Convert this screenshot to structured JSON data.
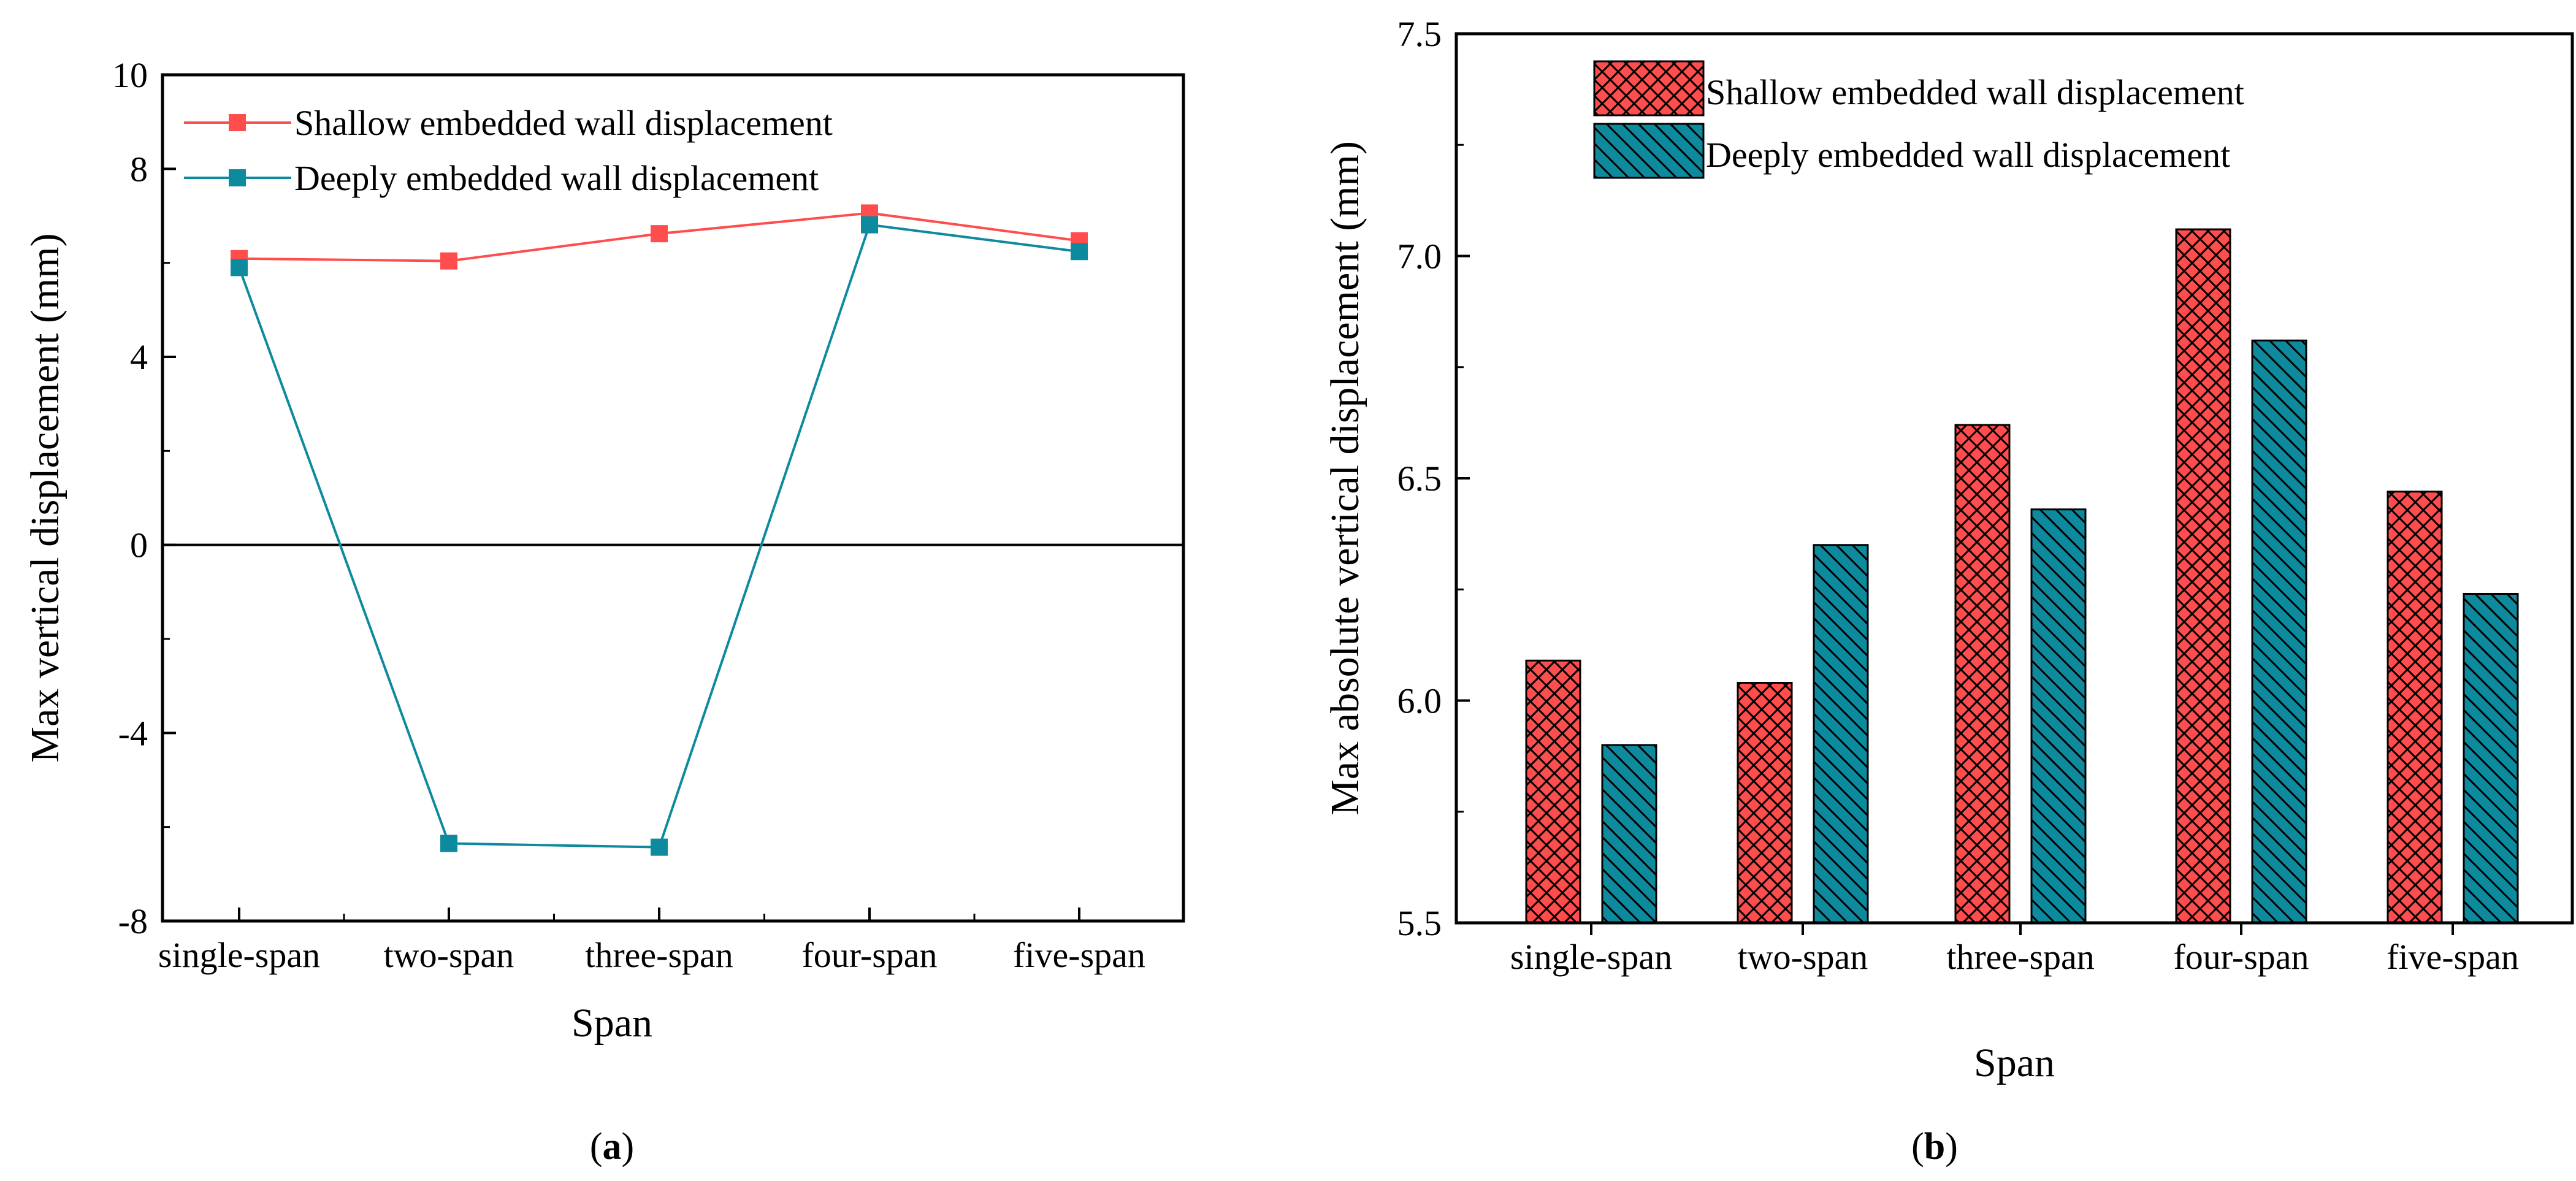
{
  "colors": {
    "shallow": "#ff4d4d",
    "deep": "#0e8a9e",
    "axis": "#000000"
  },
  "chart_data": [
    {
      "panel_label_open": "(",
      "panel_label_letter": "a",
      "panel_label_close": ")",
      "type": "line",
      "title": "",
      "xlabel": "Span",
      "ylabel": "Max vertical displacement (mm)",
      "categories": [
        "single-span",
        "two-span",
        "three-span",
        "four-span",
        "five-span"
      ],
      "ylim": [
        -8,
        10
      ],
      "yticks": [
        -8,
        -4,
        0,
        4,
        8,
        10
      ],
      "ytick_labels": [
        "-8",
        "-4",
        "0",
        "4",
        "8",
        "10"
      ],
      "zero_line": true,
      "grid": false,
      "legend_position": "top-left",
      "series": [
        {
          "name": "Shallow embedded wall displacement",
          "color": "#ff4d4d",
          "marker": "square",
          "values": [
            6.09,
            6.04,
            6.62,
            7.06,
            6.47
          ]
        },
        {
          "name": "Deeply embedded wall displacement",
          "color": "#0e8a9e",
          "marker": "square",
          "values": [
            5.9,
            -6.35,
            -6.43,
            6.81,
            6.24
          ]
        }
      ]
    },
    {
      "panel_label_open": "(",
      "panel_label_letter": "b",
      "panel_label_close": ")",
      "type": "bar",
      "title": "",
      "xlabel": "Span",
      "ylabel": "Max absolute vertical displacement (mm)",
      "categories": [
        "single-span",
        "two-span",
        "three-span",
        "four-span",
        "five-span"
      ],
      "ylim": [
        5.5,
        7.5
      ],
      "yticks": [
        5.5,
        6.0,
        6.5,
        7.0,
        7.5
      ],
      "ytick_labels": [
        "5.5",
        "6.0",
        "6.5",
        "7.0",
        "7.5"
      ],
      "grid": false,
      "legend_position": "top-left",
      "series": [
        {
          "name": "Shallow embedded wall displacement",
          "color": "#ff4d4d",
          "pattern": "crosshatch",
          "values": [
            6.09,
            6.04,
            6.62,
            7.06,
            6.47
          ]
        },
        {
          "name": "Deeply embedded wall displacement",
          "color": "#0e8a9e",
          "pattern": "diagonal",
          "values": [
            5.9,
            6.35,
            6.43,
            6.81,
            6.24
          ]
        }
      ]
    }
  ]
}
